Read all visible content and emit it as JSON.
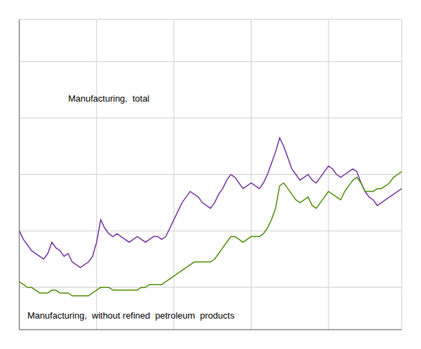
{
  "chart_data": {
    "type": "line",
    "categories": [
      null,
      null,
      null,
      null,
      null,
      null,
      null,
      null,
      null,
      null,
      null,
      null,
      null,
      null,
      null,
      null,
      null,
      null,
      null,
      null,
      null,
      null,
      null,
      null,
      null,
      null,
      null,
      null,
      null,
      null,
      null,
      null,
      null,
      null,
      null,
      null,
      null,
      null,
      null,
      null,
      null,
      null,
      null,
      null,
      null,
      null,
      null,
      null,
      null,
      null,
      null,
      null,
      null,
      null,
      null,
      null,
      null,
      null,
      null,
      null,
      null,
      null,
      null,
      null,
      null,
      null,
      null,
      null,
      null,
      null,
      null,
      null,
      null,
      null,
      null,
      null,
      null,
      null,
      null,
      null,
      null,
      null,
      null,
      null,
      null,
      null,
      null,
      null,
      null,
      null,
      null,
      null,
      null,
      null,
      null
    ],
    "series": [
      {
        "color": "#7030A0",
        "values": [
          100,
          97,
          95,
          93,
          92,
          91,
          90,
          92,
          96,
          94,
          93,
          91,
          92,
          89,
          88,
          87,
          88,
          89,
          91,
          96,
          104,
          101,
          99,
          98,
          99,
          98,
          97,
          96,
          97,
          98,
          97,
          96,
          97,
          98,
          98,
          97,
          98,
          101,
          104,
          107,
          110,
          112,
          114,
          113,
          112,
          110,
          109,
          108,
          110,
          113,
          115,
          118,
          120,
          119,
          117,
          115,
          116,
          117,
          116,
          115,
          117,
          120,
          124,
          128,
          133,
          130,
          126,
          122,
          120,
          118,
          119,
          120,
          118,
          117,
          119,
          121,
          123,
          122,
          120,
          119,
          120,
          121,
          122,
          121,
          117,
          114,
          112,
          111,
          109,
          110,
          111,
          112,
          113,
          114,
          115
        ]
      },
      {
        "color": "#4B8B00",
        "values": [
          82,
          81,
          80,
          80,
          79,
          78,
          78,
          78,
          79,
          79,
          78,
          78,
          78,
          77,
          77,
          77,
          77,
          77,
          78,
          79,
          80,
          80,
          80,
          79,
          79,
          79,
          79,
          79,
          79,
          79,
          80,
          80,
          81,
          81,
          81,
          81,
          82,
          83,
          84,
          85,
          86,
          87,
          88,
          89,
          89,
          89,
          89,
          89,
          90,
          92,
          94,
          96,
          98,
          98,
          97,
          96,
          97,
          98,
          98,
          98,
          99,
          101,
          104,
          108,
          116,
          117,
          115,
          113,
          111,
          110,
          111,
          112,
          109,
          108,
          110,
          112,
          114,
          113,
          112,
          111,
          114,
          116,
          118,
          119,
          117,
          114,
          114,
          114,
          115,
          115,
          116,
          117,
          119,
          120,
          121
        ]
      }
    ],
    "ylim": [
      65,
      175
    ],
    "yticks": [
      80,
      100,
      120,
      140,
      160
    ],
    "grid": true,
    "tick_labels": false,
    "annotations": [
      {
        "text": "Manufacturing,  total",
        "x": 12,
        "y": 147
      },
      {
        "text": "Manufacturing,  without refined  petroleum  products",
        "x": 2,
        "y": 70
      }
    ]
  }
}
